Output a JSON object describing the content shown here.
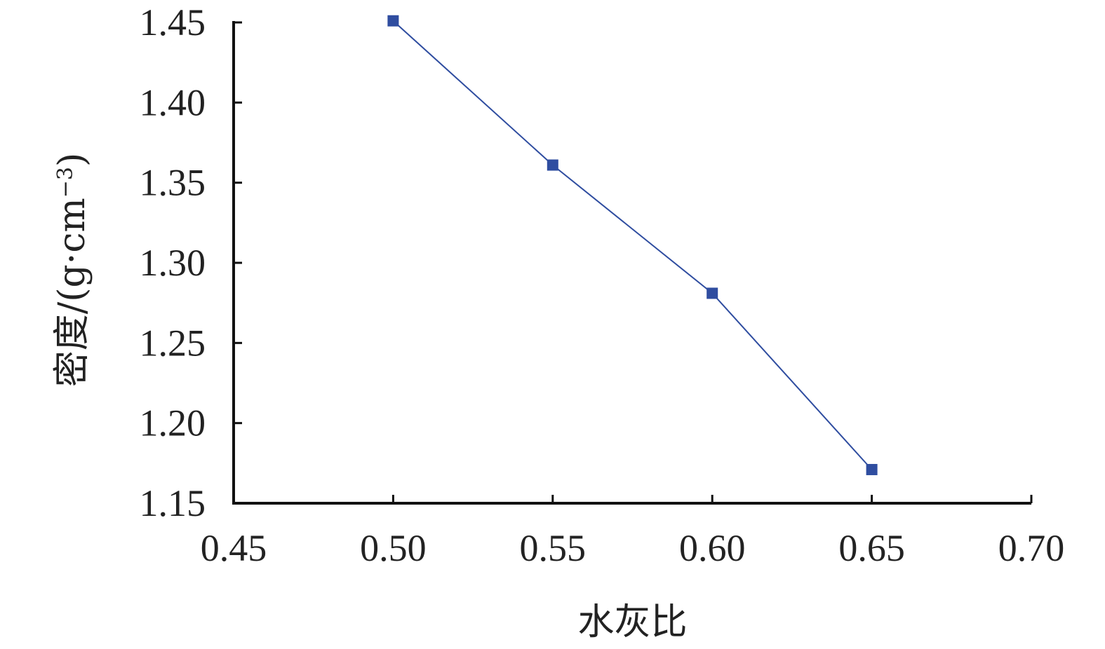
{
  "chart_data": {
    "type": "line",
    "title": "",
    "xlabel": "水灰比",
    "ylabel": "密度/(g·cm",
    "ylabel_sup": "−3",
    "ylabel_close": ")",
    "xlim": [
      0.45,
      0.7
    ],
    "ylim": [
      1.15,
      1.45
    ],
    "x_ticks": [
      "0.45",
      "0.50",
      "0.55",
      "0.60",
      "0.65",
      "0.70"
    ],
    "y_ticks": [
      "1.45",
      "1.40",
      "1.35",
      "1.30",
      "1.25",
      "1.20",
      "1.15"
    ],
    "x_tick_values": [
      0.45,
      0.5,
      0.55,
      0.6,
      0.65,
      0.7
    ],
    "y_tick_values": [
      1.45,
      1.4,
      1.35,
      1.3,
      1.25,
      1.2,
      1.15
    ],
    "grid": false,
    "legend": "none",
    "series": [
      {
        "x": [
          0.5,
          0.55,
          0.6,
          0.65
        ],
        "values": [
          1.451,
          1.361,
          1.281,
          1.171
        ],
        "marker": "square",
        "color": "#2f4da0"
      }
    ]
  }
}
